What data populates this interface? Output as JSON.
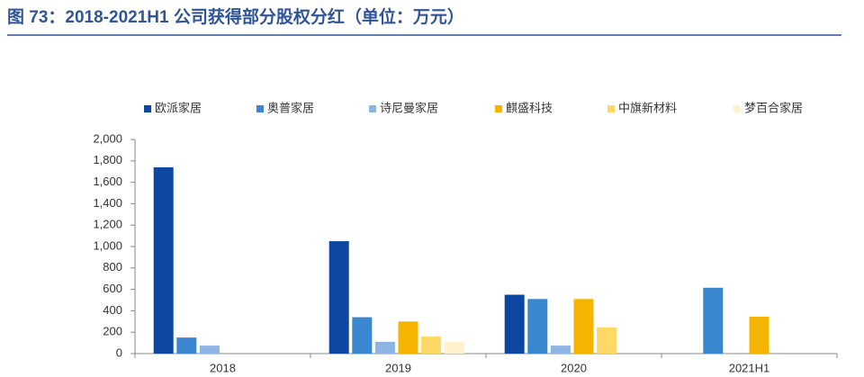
{
  "chart_data": {
    "type": "bar",
    "title": "图 73：2018-2021H1 公司获得部分股权分红（单位：万元）",
    "categories": [
      "2018",
      "2019",
      "2020",
      "2021H1"
    ],
    "series": [
      {
        "name": "欧派家居",
        "color": "#0d47a1",
        "values": [
          1740,
          1050,
          550,
          null
        ]
      },
      {
        "name": "奥普家居",
        "color": "#3a87d0",
        "values": [
          150,
          340,
          510,
          615
        ]
      },
      {
        "name": "诗尼曼家居",
        "color": "#8db4e2",
        "values": [
          75,
          110,
          75,
          null
        ]
      },
      {
        "name": "麒盛科技",
        "color": "#f5b400",
        "values": [
          null,
          300,
          510,
          345
        ]
      },
      {
        "name": "中旗新材料",
        "color": "#ffd966",
        "values": [
          null,
          160,
          245,
          null
        ]
      },
      {
        "name": "梦百合家居",
        "color": "#fff2cc",
        "values": [
          null,
          110,
          null,
          null
        ]
      }
    ],
    "ylim": [
      0,
      2000
    ],
    "yticks": [
      0,
      200,
      400,
      600,
      800,
      {
        "value": 1000,
        "label": "1,000"
      },
      {
        "value": 1200,
        "label": "1,200"
      },
      {
        "value": 1400,
        "label": "1,400"
      },
      {
        "value": 1600,
        "label": "1,600"
      },
      {
        "value": 1800,
        "label": "1,800"
      },
      {
        "value": 2000,
        "label": "2,000"
      }
    ],
    "grid": false,
    "legend": "top"
  }
}
